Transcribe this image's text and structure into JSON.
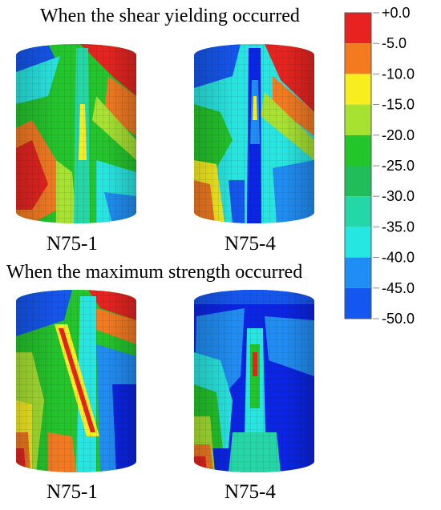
{
  "headings": {
    "top": "When the shear yielding occurred",
    "bottom": "When the maximum strength occurred"
  },
  "specimens": [
    {
      "label": "N75-1",
      "stage": "shear-yielding"
    },
    {
      "label": "N75-4",
      "stage": "shear-yielding"
    },
    {
      "label": "N75-1",
      "stage": "maximum-strength"
    },
    {
      "label": "N75-4",
      "stage": "maximum-strength"
    }
  ],
  "legend": {
    "levels": [
      "+0.0",
      "-5.0",
      "-10.0",
      "-15.0",
      "-20.0",
      "-25.0",
      "-30.0",
      "-35.0",
      "-40.0",
      "-45.0",
      "-50.0"
    ],
    "colors": [
      "#e8231f",
      "#f47a20",
      "#f6ee1e",
      "#a6e22f",
      "#22c62a",
      "#21bd5a",
      "#23d8a6",
      "#26e6e1",
      "#1e8ef5",
      "#1356f0",
      "#0a24e8"
    ]
  }
}
